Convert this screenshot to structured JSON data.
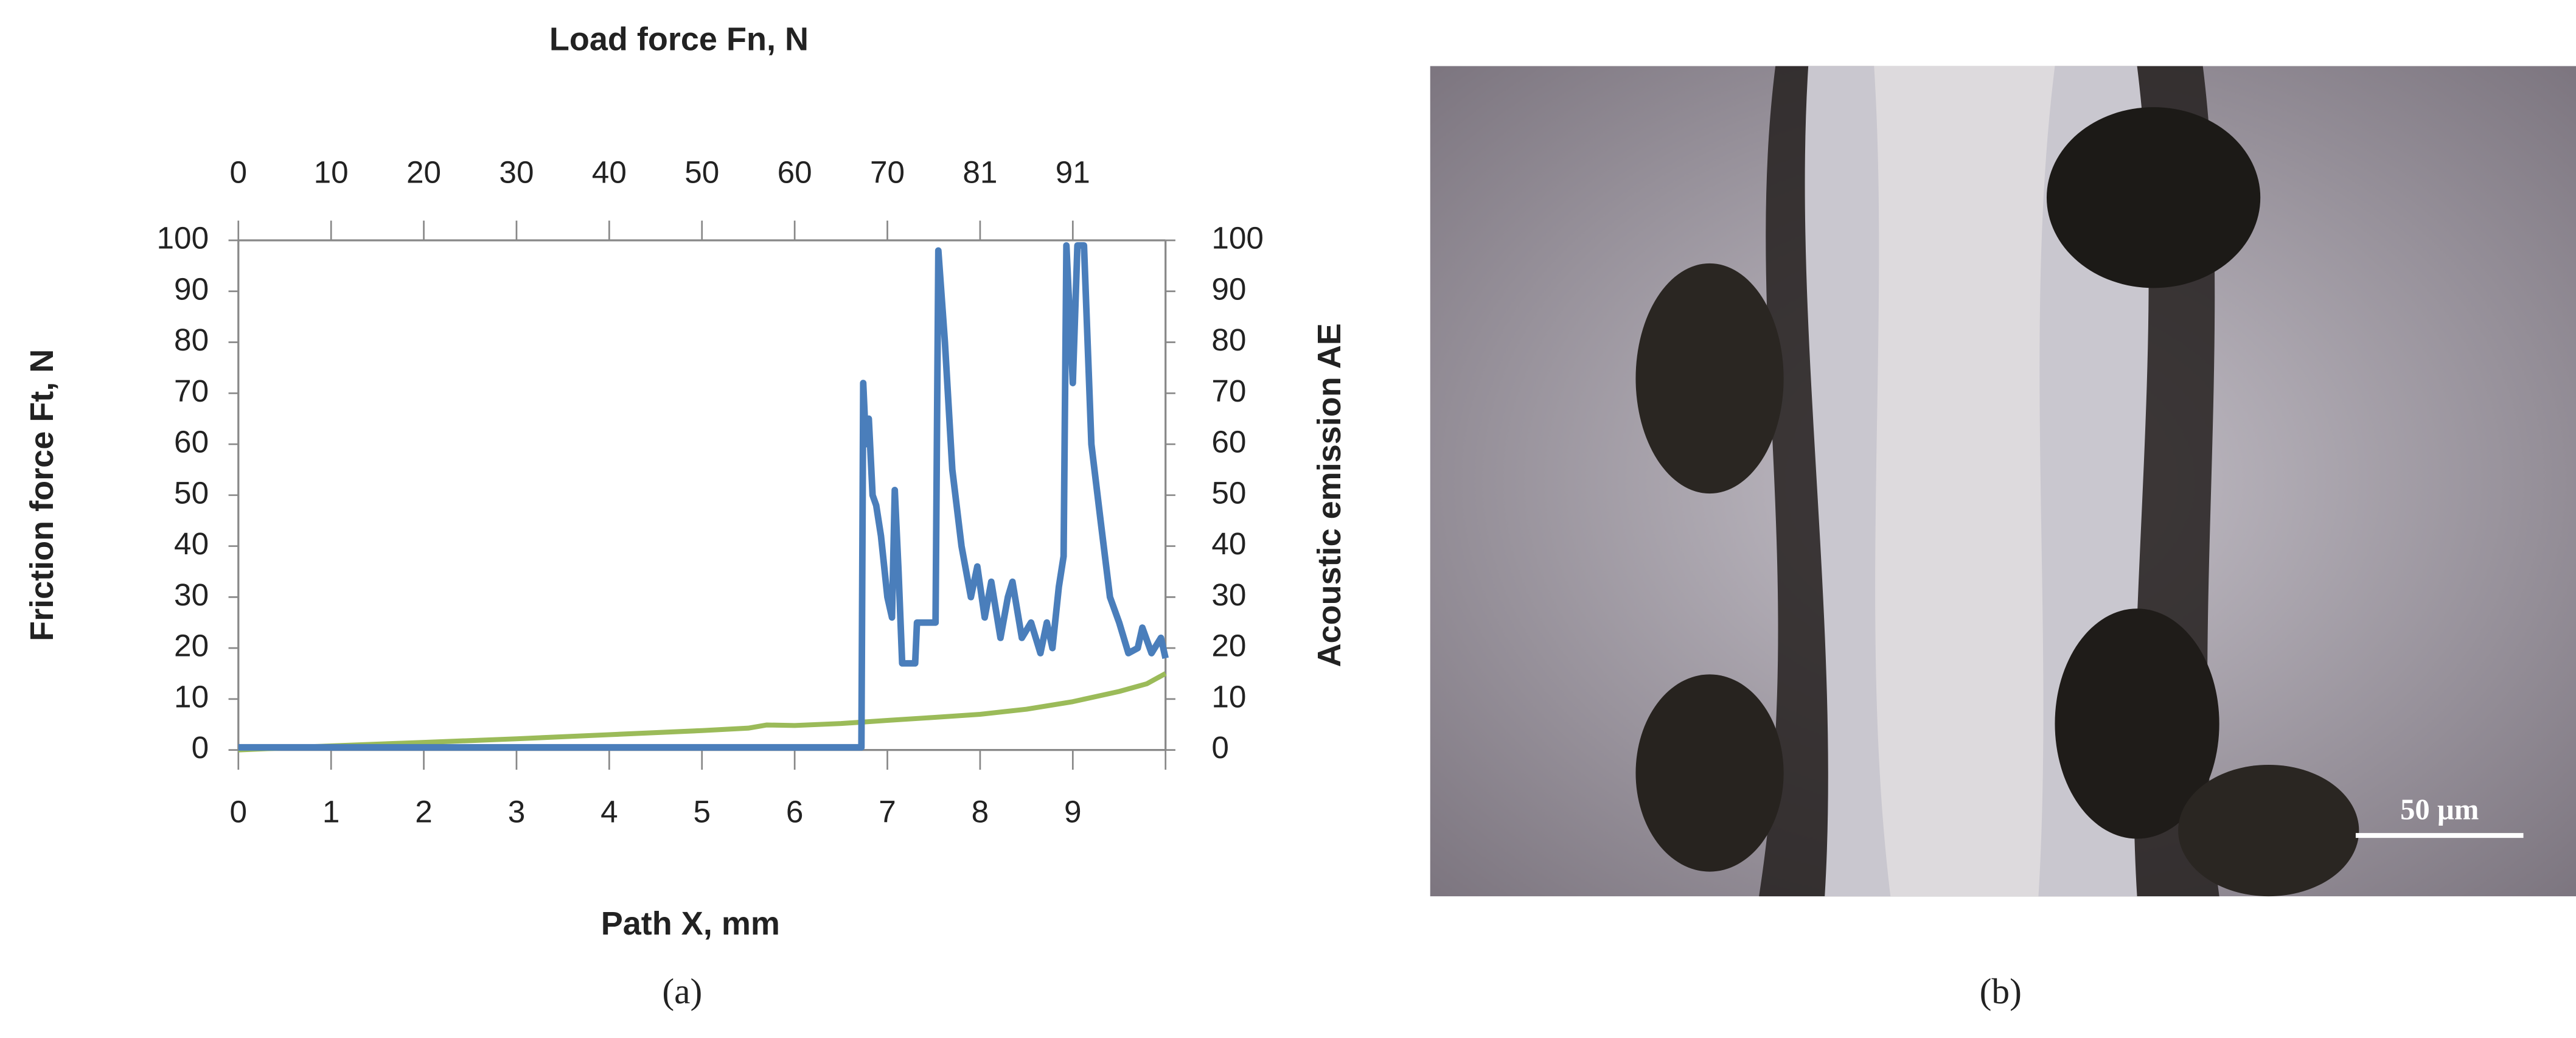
{
  "chart_data": {
    "type": "line",
    "title": "Load force Fn, N",
    "x_label": "Path X, mm",
    "y_label": "Friction force Ft, N",
    "y2_label": "Acoustic emission AE",
    "xlim": [
      0,
      10
    ],
    "xticks": [
      0,
      1,
      2,
      3,
      4,
      5,
      6,
      7,
      8,
      9
    ],
    "x2ticks": [
      0,
      10,
      20,
      30,
      40,
      50,
      60,
      70,
      81,
      91
    ],
    "ylim": [
      0,
      100
    ],
    "yticks": [
      0,
      10,
      20,
      30,
      40,
      50,
      60,
      70,
      80,
      90,
      100
    ],
    "y2lim": [
      0,
      100
    ],
    "y2ticks": [
      0,
      10,
      20,
      30,
      40,
      50,
      60,
      70,
      80,
      90,
      100
    ],
    "series": [
      {
        "color": "#4a7ebb",
        "axis": "y2",
        "x": [
          0,
          6.72,
          6.74,
          6.77,
          6.8,
          6.84,
          6.88,
          6.93,
          7.0,
          7.05,
          7.08,
          7.12,
          7.16,
          7.2,
          7.3,
          7.32,
          7.52,
          7.55,
          7.62,
          7.7,
          7.8,
          7.9,
          7.97,
          8.05,
          8.12,
          8.22,
          8.3,
          8.35,
          8.45,
          8.55,
          8.65,
          8.72,
          8.78,
          8.85,
          8.9,
          8.93,
          9.0,
          9.05,
          9.12,
          9.2,
          9.3,
          9.4,
          9.5,
          9.6,
          9.7,
          9.75,
          9.85,
          9.95,
          10
        ],
        "values": [
          0.5,
          0.5,
          72,
          60,
          65,
          50,
          48,
          42,
          30,
          26,
          51,
          35,
          17,
          17,
          17,
          25,
          25,
          98,
          80,
          55,
          40,
          30,
          36,
          26,
          33,
          22,
          30,
          33,
          22,
          25,
          19,
          25,
          20,
          32,
          38,
          99,
          72,
          99,
          99,
          60,
          45,
          30,
          25,
          19,
          20,
          24,
          19,
          22,
          18
        ]
      },
      {
        "color": "#9bbb59",
        "x": [
          0,
          1,
          2,
          3,
          4,
          5,
          5.5,
          5.7,
          6,
          6.5,
          7,
          7.5,
          8,
          8.5,
          9,
          9.5,
          9.8,
          10
        ],
        "values": [
          0,
          0.8,
          1.5,
          2.2,
          3,
          3.8,
          4.3,
          4.9,
          4.8,
          5.2,
          5.8,
          6.4,
          7,
          8,
          9.5,
          11.5,
          13,
          15
        ]
      }
    ]
  },
  "micrograph": {
    "scale_bar": "50 µm"
  },
  "captions": [
    "(a)",
    "(b)"
  ]
}
